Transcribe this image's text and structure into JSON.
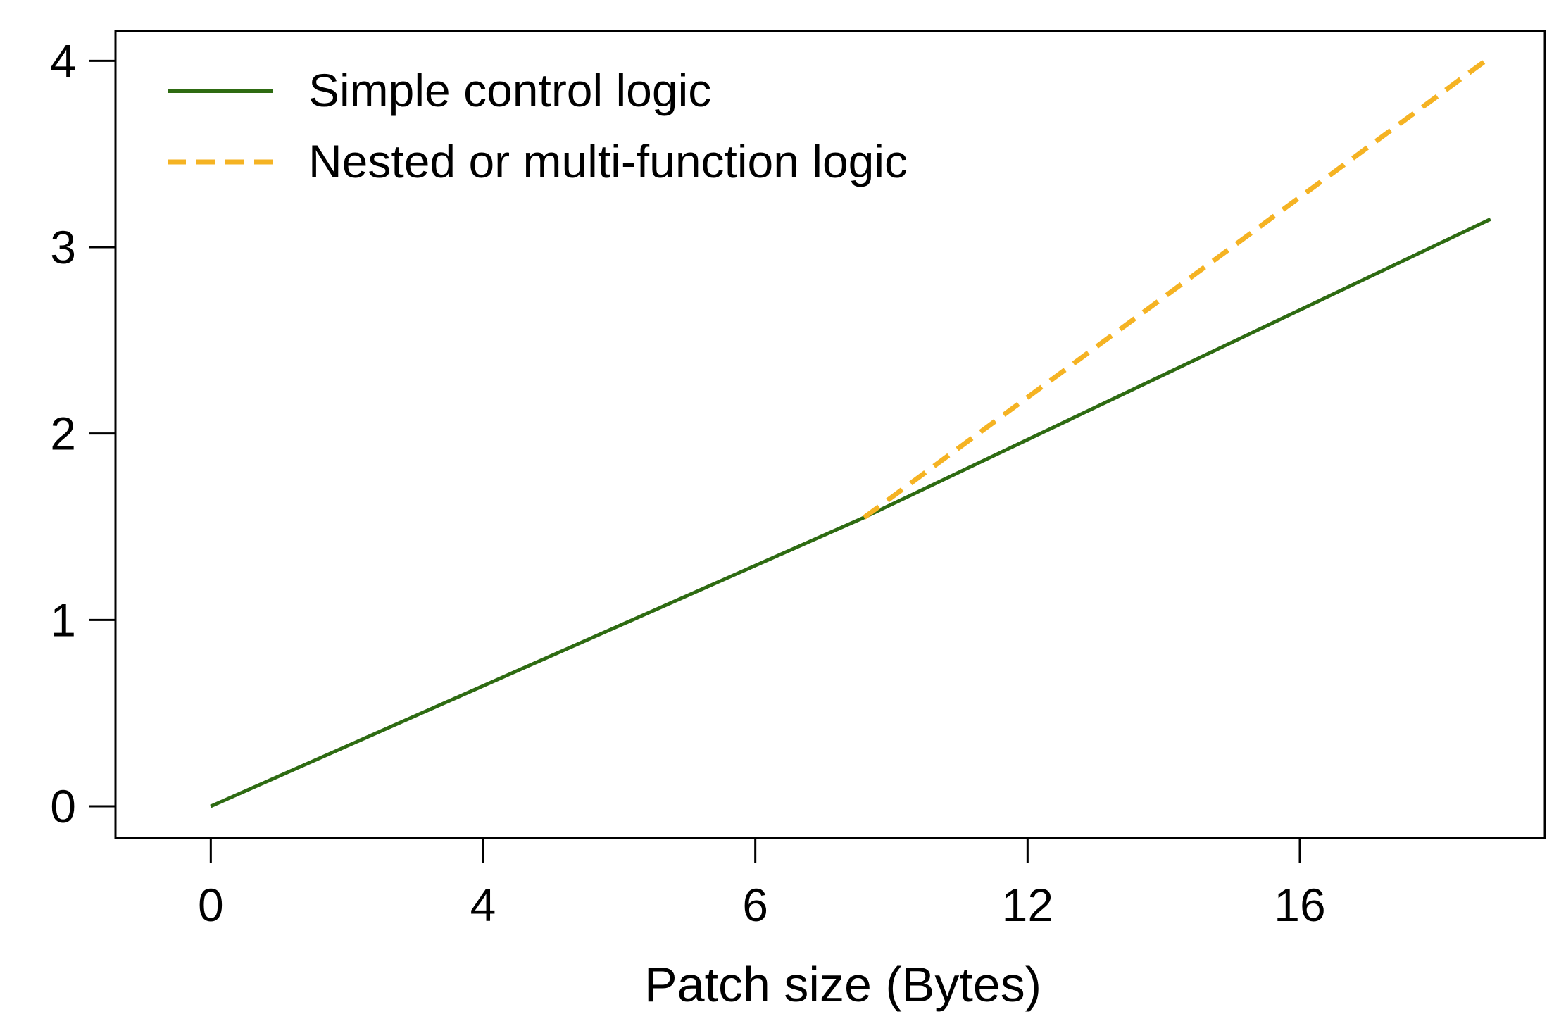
{
  "chart_data": {
    "type": "line",
    "title": "",
    "xlabel": "Patch size (Bytes)",
    "ylabel": "",
    "x_ticks": [
      {
        "label": "0",
        "pos": 0
      },
      {
        "label": "4",
        "pos": 1
      },
      {
        "label": "6",
        "pos": 2
      },
      {
        "label": "12",
        "pos": 3
      },
      {
        "label": "16",
        "pos": 4
      }
    ],
    "y_ticks": [
      "0",
      "1",
      "2",
      "3",
      "4"
    ],
    "xlim": [
      -0.35,
      4.9
    ],
    "ylim": [
      -0.17,
      4.16
    ],
    "grid": false,
    "legend_position": "top-left",
    "series": [
      {
        "name": "Simple control logic",
        "color": "#2e6b12",
        "style": "solid",
        "points": [
          [
            0,
            0
          ],
          [
            2.4,
            1.55
          ],
          [
            4.7,
            3.15
          ]
        ]
      },
      {
        "name": "Nested or multi-function logic",
        "color": "#f5b323",
        "style": "dashed",
        "points": [
          [
            2.4,
            1.55
          ],
          [
            4.7,
            4.02
          ]
        ]
      }
    ]
  }
}
